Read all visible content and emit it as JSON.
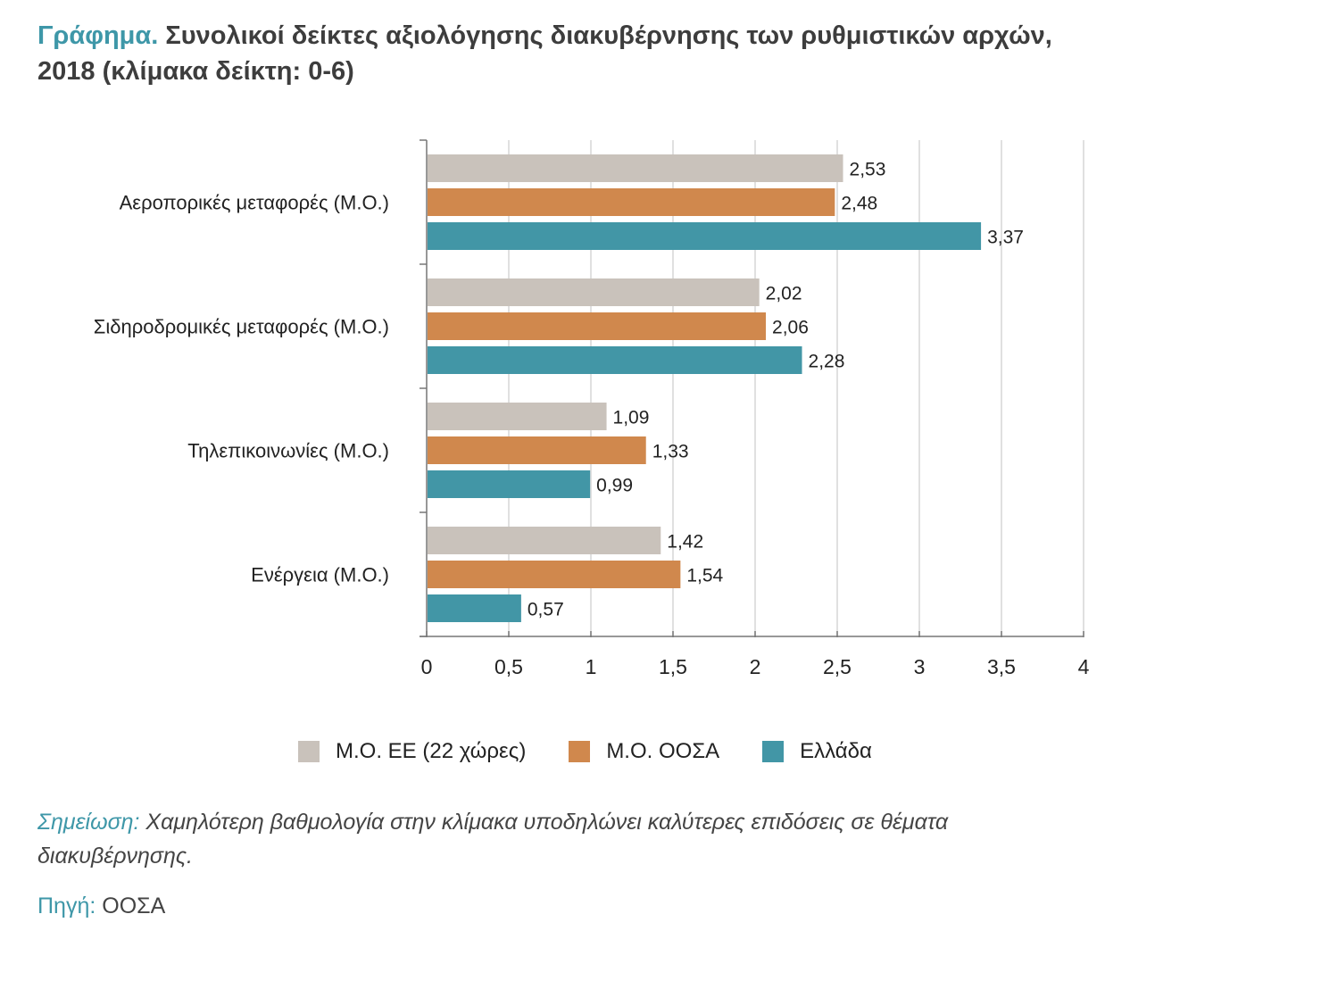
{
  "title": {
    "prefix": "Γράφημα.",
    "text": "Συνολικοί δείκτες αξιολόγησης διακυβέρνησης των ρυθμιστικών αρχών, 2018 (κλίμακα δείκτη: 0-6)"
  },
  "chart_data": {
    "type": "bar",
    "orientation": "horizontal",
    "categories": [
      "Αεροπορικές μεταφορές (Μ.Ο.)",
      "Σιδηροδρομικές μεταφορές (Μ.Ο.)",
      "Τηλεπικοινωνίες (Μ.Ο.)",
      "Ενέργεια (Μ.Ο.)"
    ],
    "series": [
      {
        "name": "Μ.Ο. ΕΕ (22 χώρες)",
        "color": "#c9c2bb",
        "values": [
          2.53,
          2.02,
          1.09,
          1.42
        ],
        "labels": [
          "2,53",
          "2,02",
          "1,09",
          "1,42"
        ]
      },
      {
        "name": "Μ.Ο. ΟΟΣΑ",
        "color": "#d0884d",
        "values": [
          2.48,
          2.06,
          1.33,
          1.54
        ],
        "labels": [
          "2,48",
          "2,06",
          "1,33",
          "1,54"
        ]
      },
      {
        "name": "Ελλάδα",
        "color": "#4296a6",
        "values": [
          3.37,
          2.28,
          0.99,
          0.57
        ],
        "labels": [
          "3,37",
          "2,28",
          "0,99",
          "0,57"
        ]
      }
    ],
    "xlim": [
      0,
      4
    ],
    "xticks": [
      0,
      0.5,
      1,
      1.5,
      2,
      2.5,
      3,
      3.5,
      4
    ],
    "xtick_labels": [
      "0",
      "0,5",
      "1",
      "1,5",
      "2",
      "2,5",
      "3",
      "3,5",
      "4"
    ],
    "grid": true,
    "legend_position": "bottom"
  },
  "note": {
    "label": "Σημείωση:",
    "text": " Χαμηλότερη βαθμολογία στην κλίμακα υποδηλώνει καλύτερες επιδόσεις σε θέματα διακυβέρνησης."
  },
  "source": {
    "label": "Πηγή:",
    "text": " ΟΟΣΑ"
  }
}
